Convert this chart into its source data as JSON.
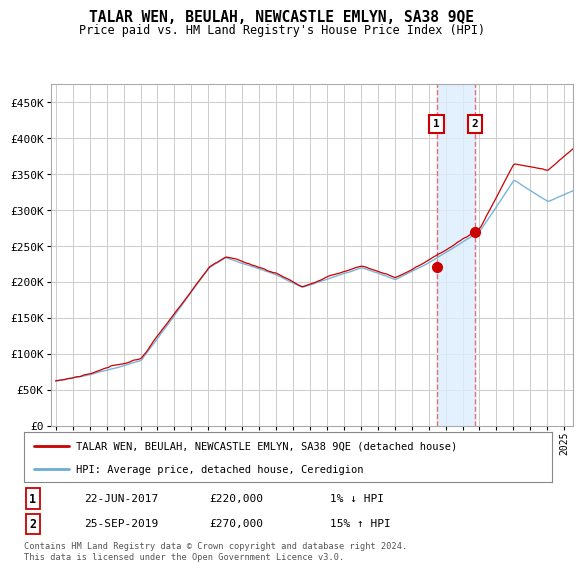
{
  "title": "TALAR WEN, BEULAH, NEWCASTLE EMLYN, SA38 9QE",
  "subtitle": "Price paid vs. HM Land Registry's House Price Index (HPI)",
  "ylabel_ticks": [
    "£0",
    "£50K",
    "£100K",
    "£150K",
    "£200K",
    "£250K",
    "£300K",
    "£350K",
    "£400K",
    "£450K"
  ],
  "ytick_values": [
    0,
    50000,
    100000,
    150000,
    200000,
    250000,
    300000,
    350000,
    400000,
    450000
  ],
  "ylim": [
    0,
    475000
  ],
  "xlim_start": 1994.7,
  "xlim_end": 2025.5,
  "hpi_color": "#6baed6",
  "price_color": "#CC0000",
  "transaction1": {
    "date": "22-JUN-2017",
    "price": 220000,
    "label": "1",
    "year": 2017.47,
    "hpi_diff": "1% ↓ HPI"
  },
  "transaction2": {
    "date": "25-SEP-2019",
    "price": 270000,
    "label": "2",
    "year": 2019.73,
    "hpi_diff": "15% ↑ HPI"
  },
  "legend_label1": "TALAR WEN, BEULAH, NEWCASTLE EMLYN, SA38 9QE (detached house)",
  "legend_label2": "HPI: Average price, detached house, Ceredigion",
  "footer": "Contains HM Land Registry data © Crown copyright and database right 2024.\nThis data is licensed under the Open Government Licence v3.0.",
  "background_color": "#ffffff",
  "plot_background": "#ffffff",
  "grid_color": "#cccccc",
  "shaded_region_color": "#ddeeff",
  "dashed_line_color": "#dd6666"
}
